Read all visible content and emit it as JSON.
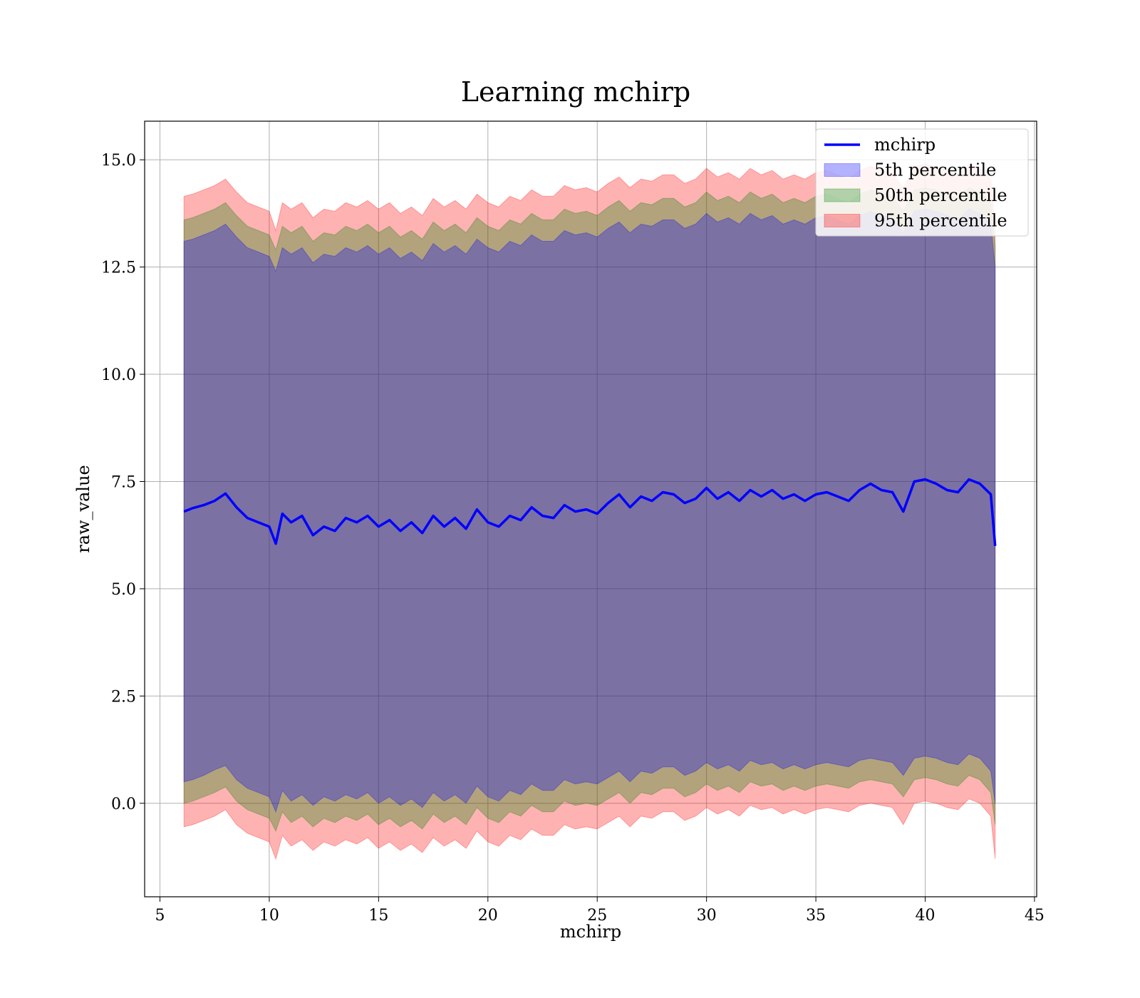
{
  "chart_data": {
    "type": "area",
    "title": "Learning mchirp",
    "xlabel": "mchirp",
    "ylabel": "raw_value",
    "xlim": [
      4.3,
      45.1
    ],
    "ylim": [
      -2.18,
      15.9
    ],
    "xticks": [
      5,
      10,
      15,
      20,
      25,
      30,
      35,
      40,
      45
    ],
    "xtick_labels": [
      "5",
      "10",
      "15",
      "20",
      "25",
      "30",
      "35",
      "40",
      "45"
    ],
    "yticks": [
      0.0,
      2.5,
      5.0,
      7.5,
      10.0,
      12.5,
      15.0
    ],
    "ytick_labels": [
      "0.0",
      "2.5",
      "5.0",
      "7.5",
      "10.0",
      "12.5",
      "15.0"
    ],
    "grid": true,
    "legend_position": "top-right",
    "x": [
      6.1,
      6.5,
      7.0,
      7.5,
      8.0,
      8.5,
      9.0,
      9.5,
      10.0,
      10.3,
      10.6,
      11.0,
      11.5,
      12.0,
      12.5,
      13.0,
      13.5,
      14.0,
      14.5,
      15.0,
      15.5,
      16.0,
      16.5,
      17.0,
      17.5,
      18.0,
      18.5,
      19.0,
      19.5,
      20.0,
      20.5,
      21.0,
      21.5,
      22.0,
      22.5,
      23.0,
      23.5,
      24.0,
      24.5,
      25.0,
      25.5,
      26.0,
      26.5,
      27.0,
      27.5,
      28.0,
      28.5,
      29.0,
      29.5,
      30.0,
      30.5,
      31.0,
      31.5,
      32.0,
      32.5,
      33.0,
      33.5,
      34.0,
      34.5,
      35.0,
      35.5,
      36.0,
      36.5,
      37.0,
      37.5,
      38.0,
      38.5,
      39.0,
      39.5,
      40.0,
      40.5,
      41.0,
      41.5,
      42.0,
      42.5,
      43.0,
      43.2
    ],
    "series": [
      {
        "name": "mchirp",
        "kind": "line",
        "color": "#0000ff",
        "values": [
          6.8,
          6.88,
          6.95,
          7.05,
          7.22,
          6.9,
          6.65,
          6.55,
          6.45,
          6.05,
          6.75,
          6.55,
          6.7,
          6.25,
          6.45,
          6.35,
          6.65,
          6.55,
          6.7,
          6.45,
          6.6,
          6.35,
          6.55,
          6.3,
          6.7,
          6.45,
          6.65,
          6.4,
          6.85,
          6.55,
          6.45,
          6.7,
          6.6,
          6.9,
          6.7,
          6.65,
          6.95,
          6.8,
          6.85,
          6.75,
          7.0,
          7.2,
          6.9,
          7.15,
          7.05,
          7.25,
          7.2,
          7.0,
          7.1,
          7.35,
          7.1,
          7.25,
          7.05,
          7.3,
          7.15,
          7.3,
          7.1,
          7.2,
          7.05,
          7.2,
          7.25,
          7.15,
          7.05,
          7.3,
          7.45,
          7.3,
          7.25,
          6.8,
          7.5,
          7.55,
          7.45,
          7.3,
          7.25,
          7.55,
          7.45,
          7.2,
          6.0
        ]
      },
      {
        "name": "5th percentile",
        "kind": "band",
        "color": "#0000ff",
        "lower": [
          0.5,
          0.55,
          0.65,
          0.78,
          0.88,
          0.55,
          0.35,
          0.25,
          0.15,
          -0.2,
          0.3,
          0.05,
          0.2,
          -0.05,
          0.15,
          0.05,
          0.2,
          0.1,
          0.25,
          0.0,
          0.15,
          -0.05,
          0.1,
          -0.1,
          0.25,
          0.05,
          0.2,
          0.0,
          0.4,
          0.15,
          0.05,
          0.3,
          0.2,
          0.45,
          0.3,
          0.3,
          0.55,
          0.45,
          0.5,
          0.45,
          0.6,
          0.75,
          0.5,
          0.75,
          0.7,
          0.85,
          0.85,
          0.65,
          0.75,
          0.95,
          0.8,
          0.9,
          0.75,
          1.0,
          0.9,
          0.95,
          0.8,
          0.9,
          0.8,
          0.9,
          0.95,
          0.9,
          0.85,
          1.0,
          1.05,
          1.0,
          0.95,
          0.65,
          1.05,
          1.1,
          1.05,
          0.95,
          0.9,
          1.15,
          1.05,
          0.75,
          0.0
        ],
        "upper": [
          13.1,
          13.15,
          13.25,
          13.35,
          13.5,
          13.2,
          12.95,
          12.85,
          12.75,
          12.4,
          12.95,
          12.8,
          12.95,
          12.6,
          12.8,
          12.75,
          12.95,
          12.85,
          13.0,
          12.8,
          12.95,
          12.7,
          12.85,
          12.65,
          13.05,
          12.85,
          13.0,
          12.8,
          13.15,
          12.95,
          12.85,
          13.1,
          13.0,
          13.25,
          13.1,
          13.1,
          13.35,
          13.25,
          13.3,
          13.2,
          13.4,
          13.55,
          13.3,
          13.5,
          13.45,
          13.6,
          13.6,
          13.4,
          13.5,
          13.75,
          13.55,
          13.65,
          13.5,
          13.75,
          13.6,
          13.7,
          13.5,
          13.6,
          13.5,
          13.65,
          13.7,
          13.6,
          13.5,
          13.7,
          13.8,
          13.7,
          13.65,
          13.3,
          13.8,
          13.85,
          13.8,
          13.7,
          13.6,
          13.85,
          13.75,
          13.5,
          12.5
        ]
      },
      {
        "name": "50th percentile",
        "kind": "band",
        "color": "#008000",
        "lower": [
          0.0,
          0.05,
          0.15,
          0.25,
          0.38,
          0.05,
          -0.15,
          -0.25,
          -0.35,
          -0.65,
          -0.2,
          -0.45,
          -0.3,
          -0.55,
          -0.35,
          -0.45,
          -0.3,
          -0.4,
          -0.25,
          -0.5,
          -0.35,
          -0.55,
          -0.4,
          -0.6,
          -0.25,
          -0.45,
          -0.3,
          -0.5,
          -0.1,
          -0.35,
          -0.45,
          -0.2,
          -0.3,
          -0.05,
          -0.2,
          -0.2,
          0.05,
          -0.05,
          0.0,
          -0.05,
          0.1,
          0.25,
          0.0,
          0.25,
          0.2,
          0.35,
          0.35,
          0.15,
          0.25,
          0.45,
          0.3,
          0.4,
          0.25,
          0.5,
          0.4,
          0.45,
          0.3,
          0.4,
          0.3,
          0.4,
          0.45,
          0.4,
          0.35,
          0.5,
          0.55,
          0.5,
          0.45,
          0.15,
          0.55,
          0.6,
          0.55,
          0.45,
          0.4,
          0.65,
          0.55,
          0.25,
          -0.5
        ],
        "upper": [
          13.6,
          13.65,
          13.75,
          13.85,
          14.0,
          13.7,
          13.45,
          13.35,
          13.25,
          12.9,
          13.45,
          13.3,
          13.45,
          13.1,
          13.3,
          13.25,
          13.45,
          13.35,
          13.5,
          13.3,
          13.45,
          13.2,
          13.35,
          13.15,
          13.55,
          13.35,
          13.5,
          13.3,
          13.65,
          13.45,
          13.35,
          13.6,
          13.5,
          13.75,
          13.6,
          13.6,
          13.85,
          13.75,
          13.8,
          13.7,
          13.9,
          14.05,
          13.8,
          14.0,
          13.95,
          14.1,
          14.1,
          13.9,
          14.0,
          14.25,
          14.05,
          14.15,
          14.0,
          14.25,
          14.1,
          14.2,
          14.0,
          14.1,
          14.0,
          14.15,
          14.2,
          14.1,
          14.0,
          14.2,
          14.3,
          14.2,
          14.15,
          13.8,
          14.3,
          14.35,
          14.3,
          14.2,
          14.1,
          14.35,
          14.25,
          14.0,
          13.0
        ]
      },
      {
        "name": "95th percentile",
        "kind": "band",
        "color": "#ff0000",
        "lower": [
          -0.55,
          -0.5,
          -0.4,
          -0.3,
          -0.15,
          -0.5,
          -0.7,
          -0.8,
          -0.9,
          -1.3,
          -0.75,
          -1.0,
          -0.85,
          -1.1,
          -0.9,
          -1.0,
          -0.85,
          -0.95,
          -0.8,
          -1.05,
          -0.9,
          -1.1,
          -0.95,
          -1.15,
          -0.8,
          -1.0,
          -0.85,
          -1.05,
          -0.65,
          -0.9,
          -1.0,
          -0.75,
          -0.85,
          -0.6,
          -0.75,
          -0.75,
          -0.5,
          -0.6,
          -0.55,
          -0.6,
          -0.45,
          -0.3,
          -0.55,
          -0.3,
          -0.35,
          -0.2,
          -0.2,
          -0.4,
          -0.3,
          -0.1,
          -0.25,
          -0.15,
          -0.3,
          -0.05,
          -0.15,
          -0.1,
          -0.25,
          -0.15,
          -0.25,
          -0.15,
          -0.1,
          -0.15,
          -0.2,
          -0.05,
          0.0,
          -0.05,
          -0.1,
          -0.5,
          0.0,
          0.05,
          0.0,
          -0.1,
          -0.15,
          0.1,
          0.0,
          -0.3,
          -1.3
        ],
        "upper": [
          14.15,
          14.2,
          14.3,
          14.4,
          14.55,
          14.25,
          14.0,
          13.9,
          13.8,
          13.35,
          14.0,
          13.85,
          14.0,
          13.65,
          13.85,
          13.8,
          14.0,
          13.9,
          14.05,
          13.85,
          14.0,
          13.75,
          13.9,
          13.7,
          14.1,
          13.9,
          14.05,
          13.85,
          14.2,
          14.0,
          13.9,
          14.15,
          14.05,
          14.3,
          14.15,
          14.15,
          14.4,
          14.3,
          14.35,
          14.25,
          14.45,
          14.6,
          14.35,
          14.55,
          14.5,
          14.65,
          14.65,
          14.45,
          14.55,
          14.8,
          14.6,
          14.7,
          14.55,
          14.8,
          14.65,
          14.75,
          14.55,
          14.65,
          14.55,
          14.7,
          14.75,
          14.65,
          14.55,
          14.75,
          14.85,
          14.75,
          14.7,
          14.35,
          14.85,
          14.9,
          14.85,
          14.75,
          14.65,
          14.9,
          14.8,
          14.55,
          13.5
        ]
      }
    ]
  }
}
